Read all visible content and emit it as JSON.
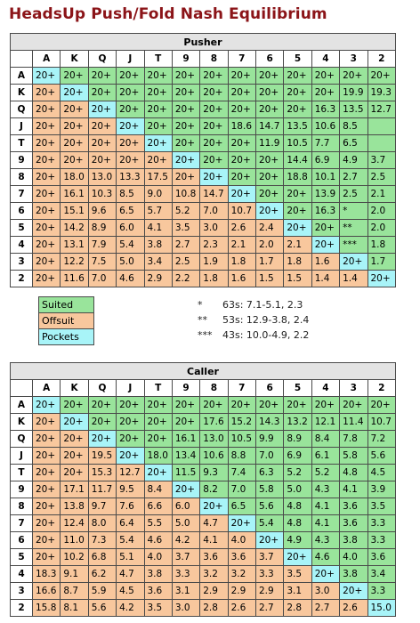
{
  "title": "HeadsUp Push/Fold Nash Equilibrium",
  "ranks": [
    "A",
    "K",
    "Q",
    "J",
    "T",
    "9",
    "8",
    "7",
    "6",
    "5",
    "4",
    "3",
    "2"
  ],
  "pusher": {
    "title": "Pusher",
    "rows": [
      [
        "20+",
        "20+",
        "20+",
        "20+",
        "20+",
        "20+",
        "20+",
        "20+",
        "20+",
        "20+",
        "20+",
        "20+",
        "20+"
      ],
      [
        "20+",
        "20+",
        "20+",
        "20+",
        "20+",
        "20+",
        "20+",
        "20+",
        "20+",
        "20+",
        "20+",
        "19.9",
        "19.3"
      ],
      [
        "20+",
        "20+",
        "20+",
        "20+",
        "20+",
        "20+",
        "20+",
        "20+",
        "20+",
        "20+",
        "16.3",
        "13.5",
        "12.7"
      ],
      [
        "20+",
        "20+",
        "20+",
        "20+",
        "20+",
        "20+",
        "20+",
        "18.6",
        "14.7",
        "13.5",
        "10.6",
        "8.5",
        ""
      ],
      [
        "20+",
        "20+",
        "20+",
        "20+",
        "20+",
        "20+",
        "20+",
        "20+",
        "11.9",
        "10.5",
        "7.7",
        "6.5",
        ""
      ],
      [
        "20+",
        "20+",
        "20+",
        "20+",
        "20+",
        "20+",
        "20+",
        "20+",
        "20+",
        "14.4",
        "6.9",
        "4.9",
        "3.7"
      ],
      [
        "20+",
        "18.0",
        "13.0",
        "13.3",
        "17.5",
        "20+",
        "20+",
        "20+",
        "20+",
        "18.8",
        "10.1",
        "2.7",
        "2.5"
      ],
      [
        "20+",
        "16.1",
        "10.3",
        "8.5",
        "9.0",
        "10.8",
        "14.7",
        "20+",
        "20+",
        "20+",
        "13.9",
        "2.5",
        "2.1"
      ],
      [
        "20+",
        "15.1",
        "9.6",
        "6.5",
        "5.7",
        "5.2",
        "7.0",
        "10.7",
        "20+",
        "20+",
        "16.3",
        "*",
        "2.0"
      ],
      [
        "20+",
        "14.2",
        "8.9",
        "6.0",
        "4.1",
        "3.5",
        "3.0",
        "2.6",
        "2.4",
        "20+",
        "20+",
        "**",
        "2.0"
      ],
      [
        "20+",
        "13.1",
        "7.9",
        "5.4",
        "3.8",
        "2.7",
        "2.3",
        "2.1",
        "2.0",
        "2.1",
        "20+",
        "***",
        "1.8"
      ],
      [
        "20+",
        "12.2",
        "7.5",
        "5.0",
        "3.4",
        "2.5",
        "1.9",
        "1.8",
        "1.7",
        "1.8",
        "1.6",
        "20+",
        "1.7"
      ],
      [
        "20+",
        "11.6",
        "7.0",
        "4.6",
        "2.9",
        "2.2",
        "1.8",
        "1.6",
        "1.5",
        "1.5",
        "1.4",
        "1.4",
        "20+"
      ]
    ]
  },
  "legend": {
    "suited": "Suited",
    "offsuit": "Offsuit",
    "pockets": "Pockets"
  },
  "notes": [
    {
      "mark": "*",
      "text": "63s: 7.1-5.1, 2.3"
    },
    {
      "mark": "**",
      "text": "53s: 12.9-3.8, 2.4"
    },
    {
      "mark": "***",
      "text": "43s: 10.0-4.9, 2.2"
    }
  ],
  "caller": {
    "title": "Caller",
    "rows": [
      [
        "20+",
        "20+",
        "20+",
        "20+",
        "20+",
        "20+",
        "20+",
        "20+",
        "20+",
        "20+",
        "20+",
        "20+",
        "20+"
      ],
      [
        "20+",
        "20+",
        "20+",
        "20+",
        "20+",
        "20+",
        "17.6",
        "15.2",
        "14.3",
        "13.2",
        "12.1",
        "11.4",
        "10.7"
      ],
      [
        "20+",
        "20+",
        "20+",
        "20+",
        "20+",
        "16.1",
        "13.0",
        "10.5",
        "9.9",
        "8.9",
        "8.4",
        "7.8",
        "7.2"
      ],
      [
        "20+",
        "20+",
        "19.5",
        "20+",
        "18.0",
        "13.4",
        "10.6",
        "8.8",
        "7.0",
        "6.9",
        "6.1",
        "5.8",
        "5.6"
      ],
      [
        "20+",
        "20+",
        "15.3",
        "12.7",
        "20+",
        "11.5",
        "9.3",
        "7.4",
        "6.3",
        "5.2",
        "5.2",
        "4.8",
        "4.5"
      ],
      [
        "20+",
        "17.1",
        "11.7",
        "9.5",
        "8.4",
        "20+",
        "8.2",
        "7.0",
        "5.8",
        "5.0",
        "4.3",
        "4.1",
        "3.9"
      ],
      [
        "20+",
        "13.8",
        "9.7",
        "7.6",
        "6.6",
        "6.0",
        "20+",
        "6.5",
        "5.6",
        "4.8",
        "4.1",
        "3.6",
        "3.5"
      ],
      [
        "20+",
        "12.4",
        "8.0",
        "6.4",
        "5.5",
        "5.0",
        "4.7",
        "20+",
        "5.4",
        "4.8",
        "4.1",
        "3.6",
        "3.3"
      ],
      [
        "20+",
        "11.0",
        "7.3",
        "5.4",
        "4.6",
        "4.2",
        "4.1",
        "4.0",
        "20+",
        "4.9",
        "4.3",
        "3.8",
        "3.3"
      ],
      [
        "20+",
        "10.2",
        "6.8",
        "5.1",
        "4.0",
        "3.7",
        "3.6",
        "3.6",
        "3.7",
        "20+",
        "4.6",
        "4.0",
        "3.6"
      ],
      [
        "18.3",
        "9.1",
        "6.2",
        "4.7",
        "3.8",
        "3.3",
        "3.2",
        "3.2",
        "3.3",
        "3.5",
        "20+",
        "3.8",
        "3.4"
      ],
      [
        "16.6",
        "8.7",
        "5.9",
        "4.5",
        "3.6",
        "3.1",
        "2.9",
        "2.9",
        "2.9",
        "3.1",
        "3.0",
        "20+",
        "3.3"
      ],
      [
        "15.8",
        "8.1",
        "5.6",
        "4.2",
        "3.5",
        "3.0",
        "2.8",
        "2.6",
        "2.7",
        "2.8",
        "2.7",
        "2.6",
        "15.0"
      ]
    ]
  }
}
